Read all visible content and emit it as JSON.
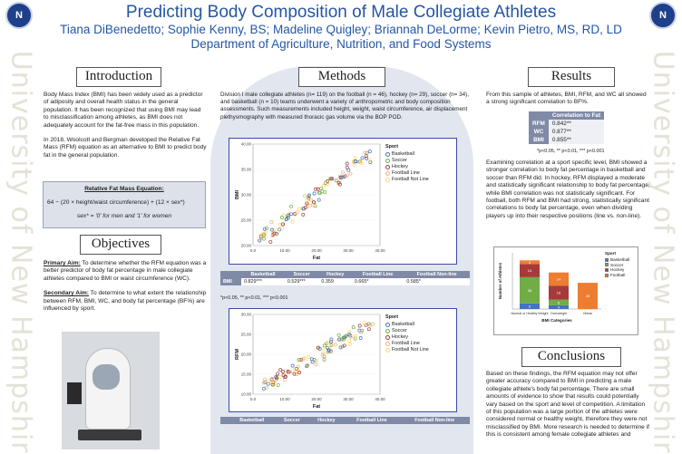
{
  "header": {
    "title": "Predicting Body Composition of Male Collegiate Athletes",
    "authors": "Tiana DiBenedetto; Sophie Kenny, BS; Madeline Quigley; Briannah DeLorme; Kevin Pietro, MS, RD, LD",
    "department": "Department of Agriculture, Nutrition, and Food Systems",
    "logo_text": "N"
  },
  "side": {
    "left": "University of New Hampshire",
    "right": "University of New Hampshire"
  },
  "introduction": {
    "heading": "Introduction",
    "p1": "Body Mass Index (BMI) has been widely used as a predictor of adiposity and overall health status in the general population. It has been recognized that using BMI may lead to misclassification among athletes, as BMI does not adequately account for the fat-free mass in this population.",
    "p2": "In 2018, Woolcott and Bergman developed the Relative Fat Mass (RFM) equation as an alternative to BMI to predict body fat in the general population.",
    "eq_title": "Relative Fat Mass Equation:",
    "eq": "64 − (20 × height/waist circumference) + (12 × sex*)",
    "eq_note": "sex* = '0' for men and '1' for women"
  },
  "objectives": {
    "heading": "Objectives",
    "primary_label": "Primary Aim:",
    "primary": " To determine whether the RFM equation was a better predictor of body fat percentage in male collegiate athletes compared to BMI or waist circumference (WC).",
    "secondary_label": "Secondary Aim:",
    "secondary": " To determine to what extent the relationship between RFM, BMI, WC, and body fat percentage (BF%) are influenced by sport."
  },
  "methods": {
    "heading": "Methods",
    "text": "Division I male collegiate athletes (n= 119) on the football (n = 46), hockey (n= 29), soccer (n= 34), and basketball (n = 10) teams underwent a variety of anthropometric and body composition assessments. Such measurements included height, weight, waist circumference, air displacement plethysmography with measured thoracic gas volume via the BOP POD.",
    "table_headers": [
      "",
      "Basketball",
      "Soccer",
      "Hockey",
      "Football Line",
      "Football Non-line"
    ],
    "table1_row": [
      "BMI",
      "0.829***",
      "0.529***",
      "0.359",
      "0.665*",
      "0.585*"
    ],
    "table_note": "*p<0.05, ** p<0.01, *** p<0.001",
    "table2_headers": [
      "",
      "Basketball",
      "Soccer",
      "Hockey",
      "Football Line",
      "Football Non-line"
    ]
  },
  "chart_data": [
    {
      "type": "scatter",
      "title": "",
      "xlabel": "Fat",
      "ylabel": "BMI",
      "legend_title": "Sport",
      "legend": [
        "Basketball",
        "Soccer",
        "Hockey",
        "Football Line",
        "Football Not Line"
      ],
      "x_ticks": [
        "0.0",
        "10.00",
        "20.00",
        "30.00",
        "40.00"
      ],
      "y_ticks": [
        "20.00",
        "25.00",
        "30.00",
        "35.00",
        "40.00"
      ],
      "xlim": [
        0,
        40
      ],
      "ylim": [
        18,
        42
      ]
    },
    {
      "type": "scatter",
      "title": "",
      "xlabel": "Fat",
      "ylabel": "RFM",
      "legend_title": "Sport",
      "legend": [
        "Basketball",
        "Soccer",
        "Hockey",
        "Football Line",
        "Football Not Line"
      ],
      "x_ticks": [
        "0.0",
        "10.00",
        "20.00",
        "30.00",
        "40.00"
      ],
      "y_ticks": [
        "10.00",
        "15.00",
        "20.00",
        "25.00",
        "30.00"
      ],
      "xlim": [
        0,
        40
      ],
      "ylim": [
        8,
        32
      ]
    },
    {
      "type": "bar",
      "title": "",
      "xlabel": "BMI Categories",
      "ylabel": "Number of Athletes",
      "legend_title": "Sport",
      "categories": [
        "Normal or Healthy Weight",
        "Overweight",
        "Obese"
      ],
      "series": [
        {
          "name": "Basketball",
          "values": [
            6,
            4,
            0
          ]
        },
        {
          "name": "Soccer",
          "values": [
            28,
            6,
            0
          ]
        },
        {
          "name": "Hockey",
          "values": [
            14,
            15,
            0
          ]
        },
        {
          "name": "Football",
          "values": [
            4,
            14,
            28
          ]
        }
      ],
      "data_labels": [
        [
          "6",
          "28",
          "14",
          "4"
        ],
        [
          "4",
          "6",
          "15",
          "14"
        ],
        [
          "",
          "",
          "",
          "28"
        ]
      ],
      "ylim": [
        0,
        60
      ]
    }
  ],
  "results": {
    "heading": "Results",
    "intro": "From this sample of athletes, BMI, RFM, and WC all showed a strong significant correlation to BF%.",
    "table_header": "Correlation to Fat",
    "rows": [
      {
        "label": "RFM",
        "value": "0.842**"
      },
      {
        "label": "WC",
        "value": "0.877**"
      },
      {
        "label": "BMI",
        "value": "0.855**"
      }
    ],
    "table_note": "*p<0.05, ** p<0.01, *** p<0.001",
    "body": "Examining correlation at a sport specific level, BMI showed a stronger correlation to body fat percentage in basketball and soccer than RFM did. In hockey, RFM displayed a moderate and statistically significant relationship to body fat percentage, while BMI correlation was not statistically significant. For football, both RFM and BMI had strong, statistically significant correlations to body fat percentage, even when dividing players up into their respective positions (line vs. non-line)."
  },
  "conclusions": {
    "heading": "Conclusions",
    "text": "Based on these findings, the RFM equation may not offer greater accuracy compared to BMI in predicting a male collegiate athlete's body fat percentage. There are small amounts of evidence to show that results could potentially vary based on the sport and level of competition. A limitation of this population was a large portion of the athletes were considered normal or healthy weight, therefore they were not misclassified by BMI. More research is needed to determine if this is consistent among female collegiate athletes and"
  },
  "colors": {
    "title_blue": "#2456a5",
    "basketball": "#4472c4",
    "soccer": "#70ad47",
    "hockey": "#a63a3a",
    "football_line": "#f4b183",
    "football_not_line": "#ffd966",
    "football": "#ed7d31"
  }
}
